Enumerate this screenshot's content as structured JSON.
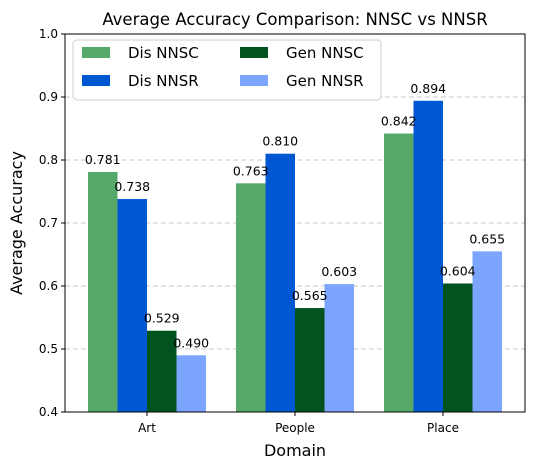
{
  "chart_data": {
    "type": "bar",
    "title": "Average Accuracy Comparison: NNSC vs NNSR",
    "xlabel": "Domain",
    "ylabel": "Average Accuracy",
    "categories": [
      "Art",
      "People",
      "Place"
    ],
    "ylim": [
      0.4,
      1.0
    ],
    "yticks": [
      "0.4",
      "0.5",
      "0.6",
      "0.7",
      "0.8",
      "0.9",
      "1.0"
    ],
    "grid": "y-dashed",
    "legend_position": "top-left",
    "series": [
      {
        "name": "Dis NNSC",
        "color": "#57a96a",
        "values": [
          0.781,
          0.763,
          0.842
        ],
        "labels": [
          "0.781",
          "0.763",
          "0.842"
        ]
      },
      {
        "name": "Dis NNSR",
        "color": "#0057d2",
        "values": [
          0.738,
          0.81,
          0.894
        ],
        "labels": [
          "0.738",
          "0.810",
          "0.894"
        ]
      },
      {
        "name": "Gen NNSC",
        "color": "#02531e",
        "values": [
          0.529,
          0.565,
          0.604
        ],
        "labels": [
          "0.529",
          "0.565",
          "0.604"
        ]
      },
      {
        "name": "Gen NNSR",
        "color": "#7ca5ff",
        "values": [
          0.49,
          0.603,
          0.655
        ],
        "labels": [
          "0.490",
          "0.603",
          "0.655"
        ]
      }
    ]
  }
}
